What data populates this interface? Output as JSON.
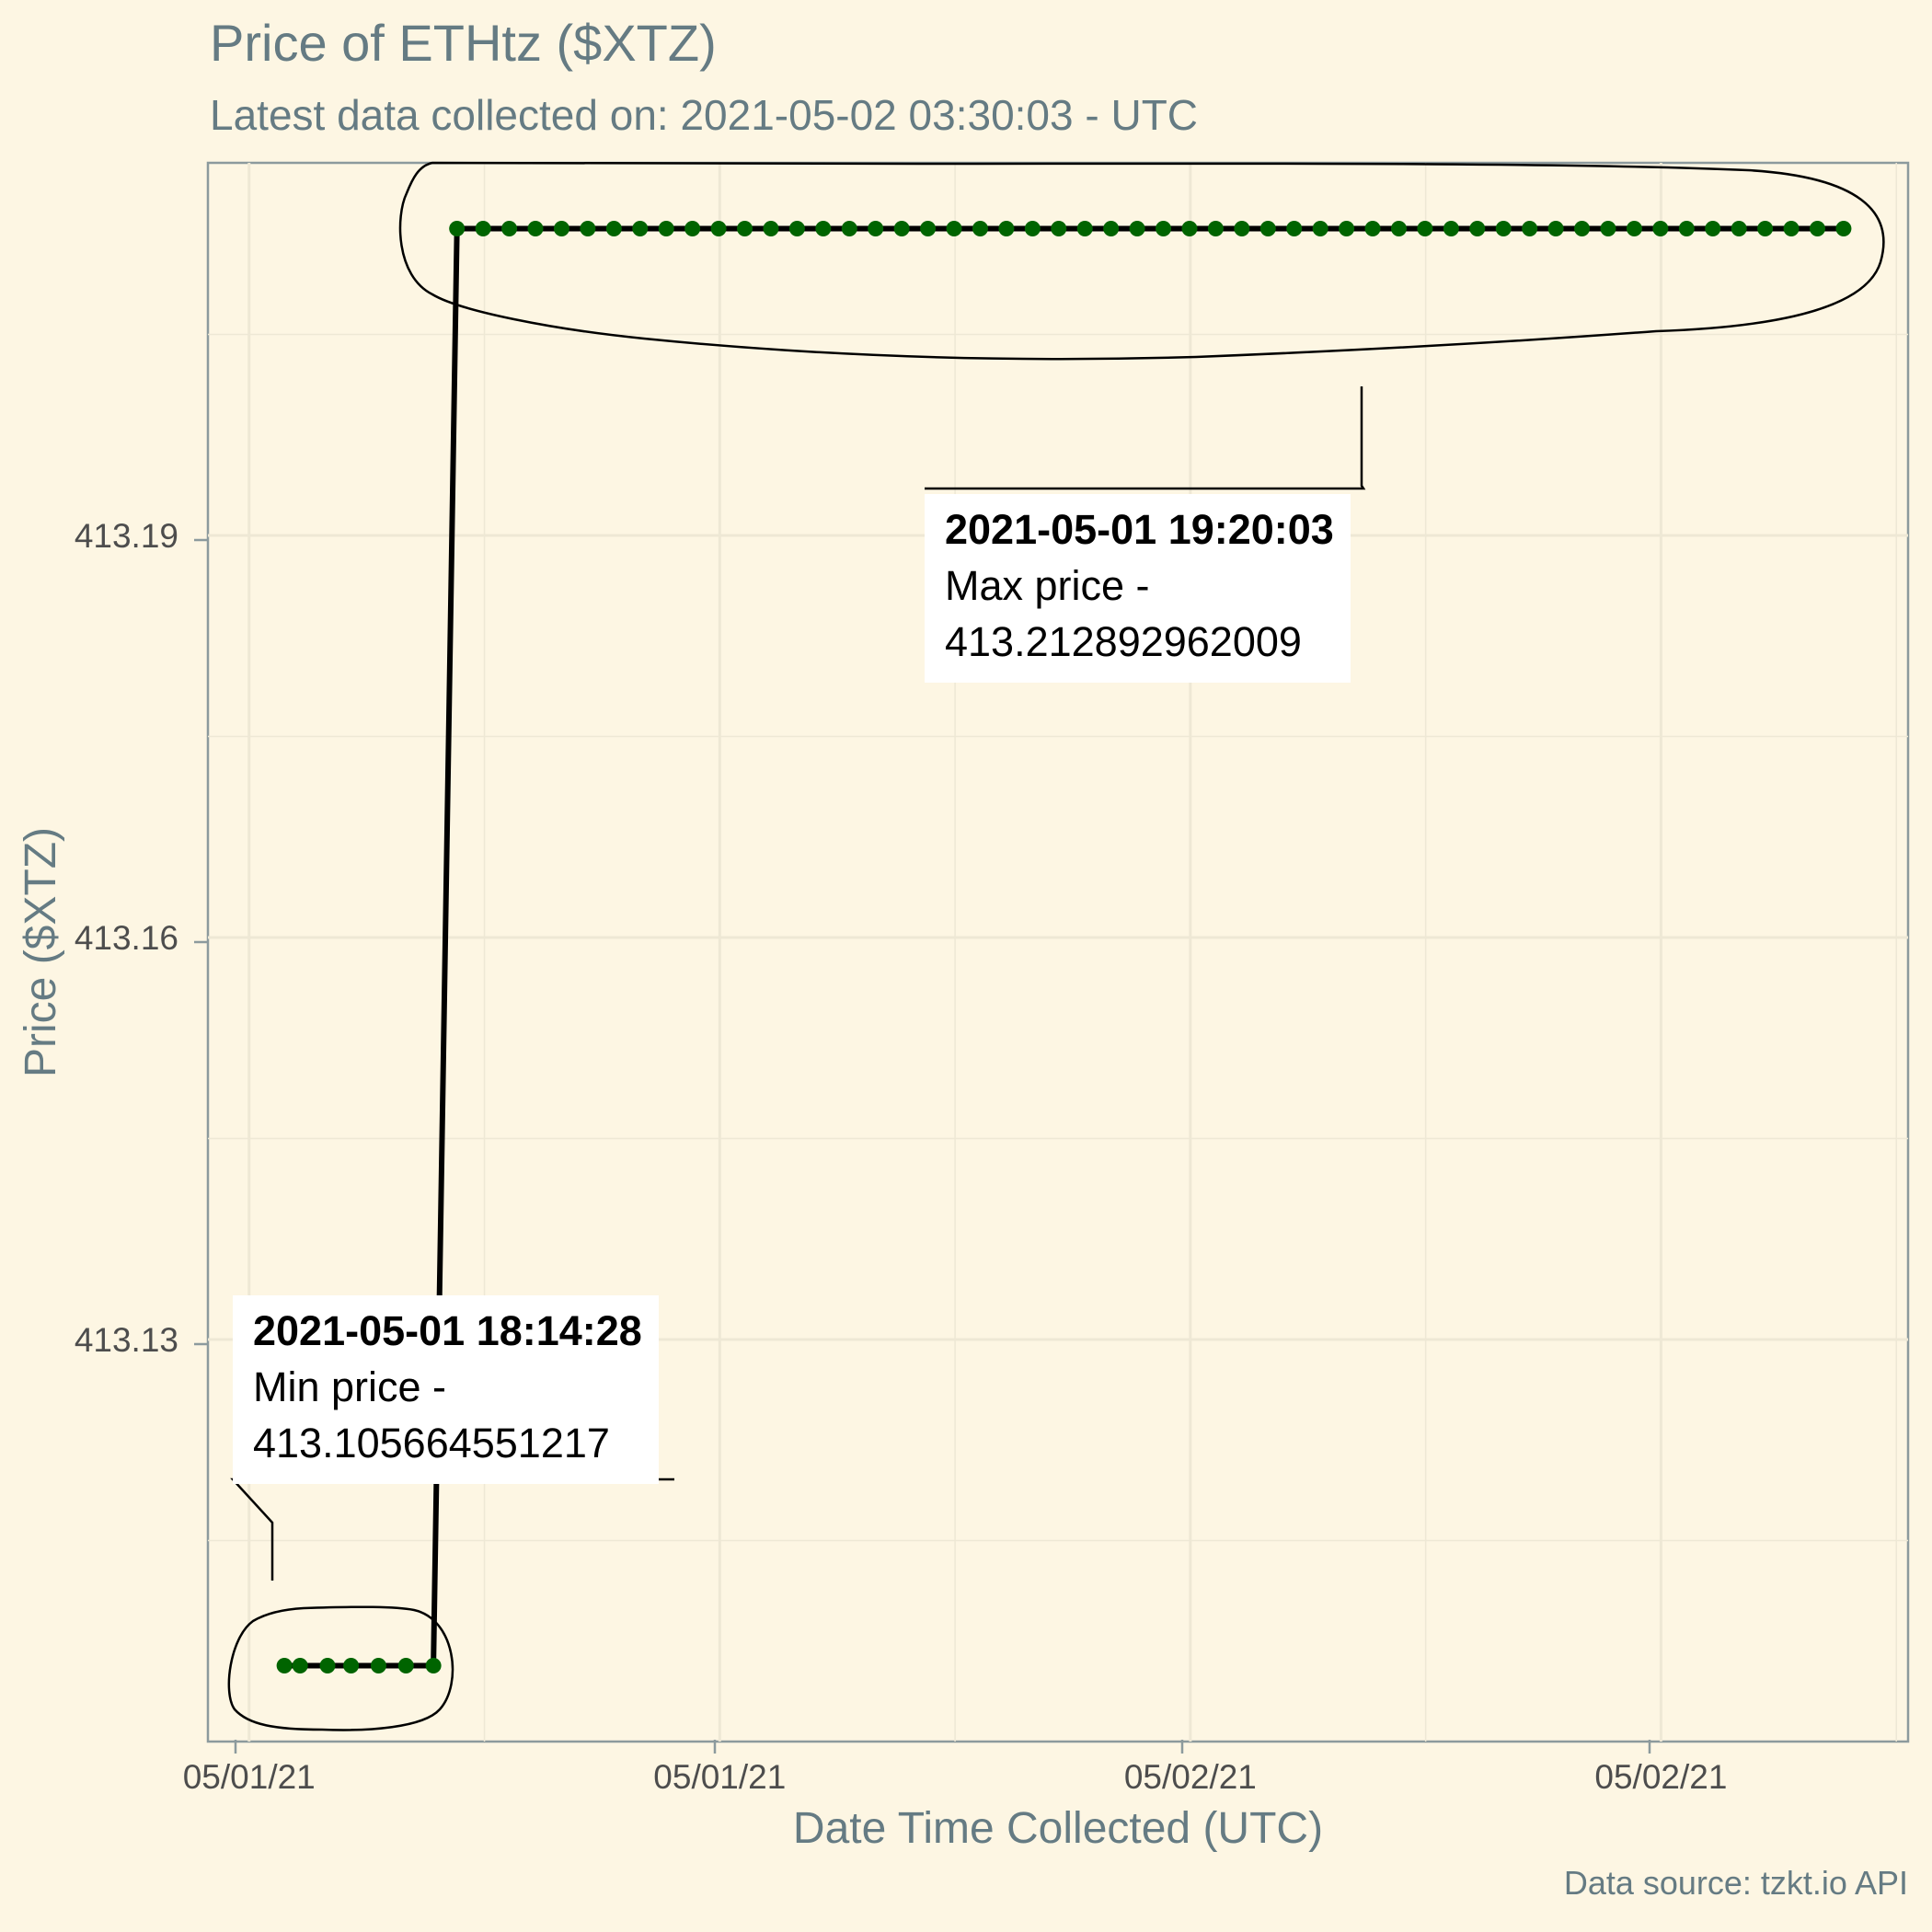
{
  "chart_data": {
    "type": "line",
    "title": "Price of ETHtz ($XTZ)",
    "subtitle": "Latest data collected on: 2021-05-02 03:30:03  - UTC",
    "xlabel": "Date Time Collected (UTC)",
    "ylabel": "Price ($XTZ)",
    "caption": "Data source: tzkt.io API",
    "y_ticks": [
      "413.13",
      "413.16",
      "413.19"
    ],
    "y_tick_values": [
      413.13,
      413.16,
      413.19
    ],
    "x_tick_labels": [
      "05/01/21",
      "05/01/21",
      "05/02/21",
      "05/02/21"
    ],
    "x_tick_hours": [
      0,
      12,
      24,
      36
    ],
    "ylim": [
      413.1,
      413.2178
    ],
    "xlim": [
      -1.05,
      42.3
    ],
    "grid": true,
    "point_color": "#006400",
    "line_color": "#000000",
    "series": [
      {
        "hours_since_first_tick": [
          0.9,
          1.3,
          2.0,
          2.6,
          3.3,
          4.0,
          4.7,
          35.3
        ],
        "price": [
          413.105664551217,
          413.105664551217,
          413.105664551217,
          413.105664551217,
          413.105664551217,
          413.105664551217,
          413.105664551217,
          413.212892962009
        ],
        "note": "points from hour 5.3 to 40.9 at step 0.667 all at max price"
      }
    ],
    "annotations": {
      "min": {
        "datetime": "2021-05-01 18:14:28",
        "label": "Min price -",
        "value": "413.105664551217"
      },
      "max": {
        "datetime": "2021-05-01 19:20:03",
        "label": "Max price -",
        "value": "413.212892962009"
      }
    }
  }
}
